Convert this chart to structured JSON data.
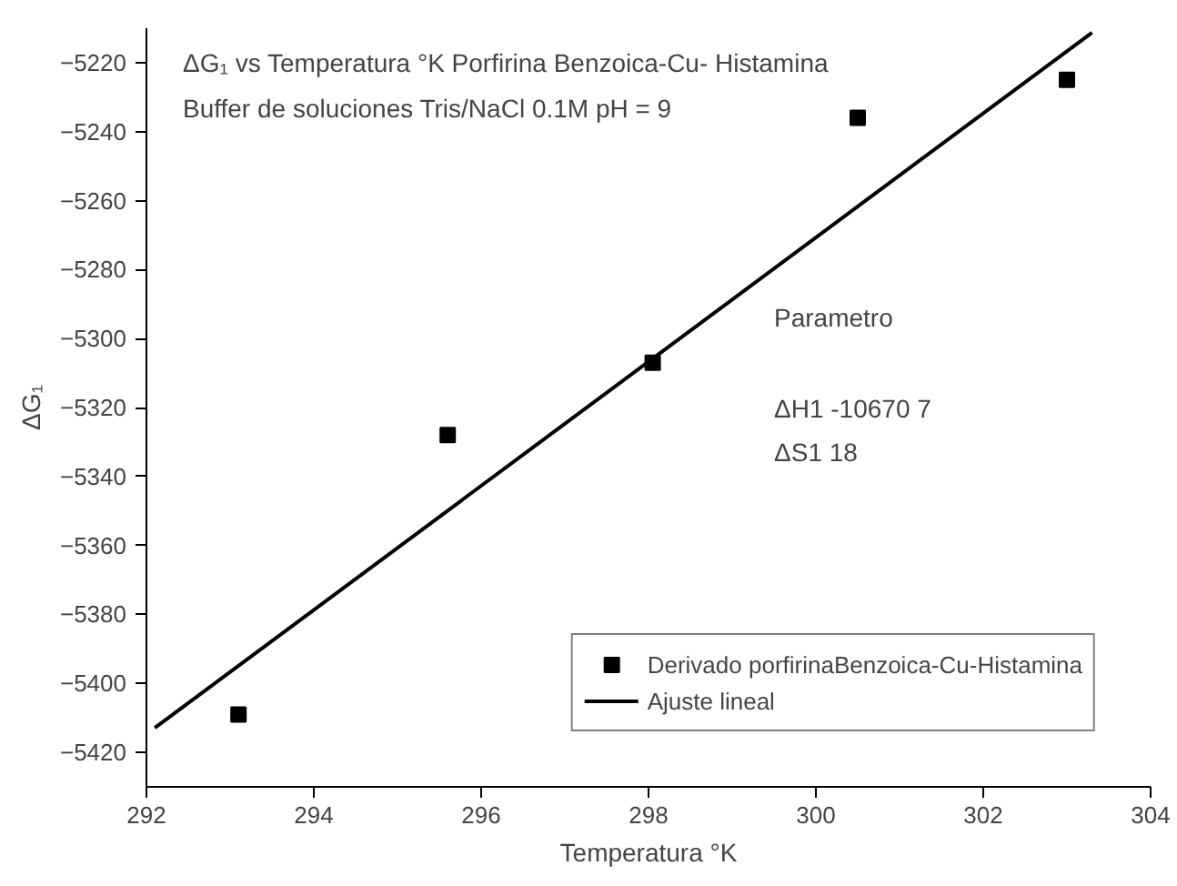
{
  "chart_data": {
    "type": "scatter",
    "title": "ΔG₁ vs Temperatura °K Porfirina Benzoica-Cu- Histamina",
    "subtitle": "Buffer de soluciones Tris/NaCl 0.1M pH = 9",
    "xlabel": "Temperatura °K",
    "ylabel": "ΔG₁",
    "x": [
      293.1,
      295.6,
      298.05,
      300.5,
      303.0
    ],
    "series": [
      {
        "name": "Derivado porfirinaBenzoica-Cu-Histamina",
        "color": "#000000",
        "values": [
          -5409,
          -5328,
          -5307,
          -5236,
          -5225
        ],
        "marker": "square"
      },
      {
        "name": "Ajuste lineal",
        "type": "line",
        "color": "#000000",
        "x": [
          292.1,
          303.3
        ],
        "values": [
          -5412.9,
          -5211.3
        ]
      }
    ],
    "annotations": [
      "Parametro",
      "ΔH1    -10670 7",
      "ΔS1     18"
    ],
    "xlim": [
      292,
      304
    ],
    "ylim": [
      -5430,
      -5210
    ],
    "xticks": [
      292,
      294,
      296,
      298,
      300,
      302,
      304
    ],
    "yticks": [
      -5420,
      -5400,
      -5380,
      -5360,
      -5340,
      -5320,
      -5300,
      -5280,
      -5260,
      -5240,
      -5220
    ],
    "grid": false,
    "legend": "bottom right",
    "line_style": "solid"
  }
}
